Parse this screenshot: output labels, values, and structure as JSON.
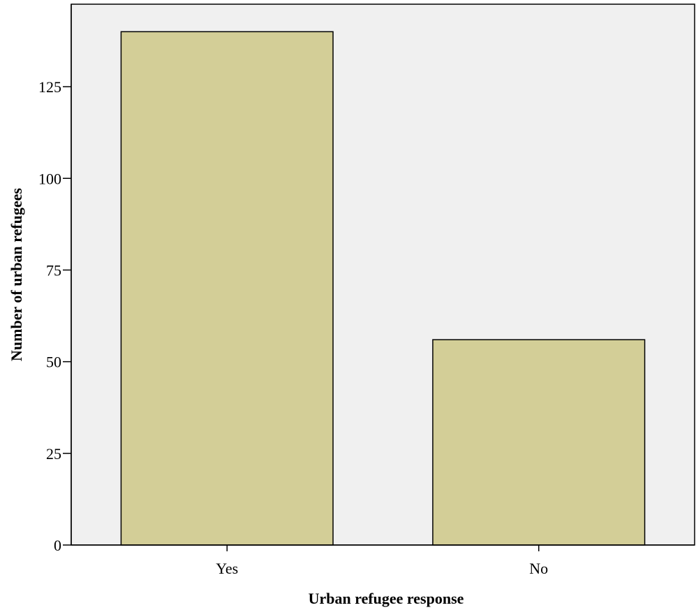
{
  "chart_data": {
    "type": "bar",
    "categories": [
      "Yes",
      "No"
    ],
    "values": [
      140,
      56
    ],
    "xlabel": "Urban refugee response",
    "ylabel": "Number of urban refugees",
    "ylim": [
      0,
      147.5
    ],
    "yticks": [
      0,
      25,
      50,
      75,
      100,
      125
    ],
    "grid": false,
    "colors": {
      "plot_background": "#f0f0f0",
      "bar_fill": "#d3ce97",
      "bar_stroke": "#000000",
      "axis": "#000000"
    }
  }
}
